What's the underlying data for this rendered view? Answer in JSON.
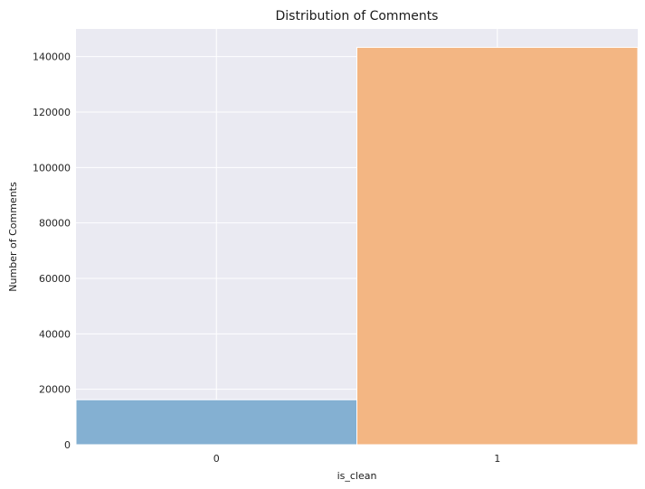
{
  "chart_data": {
    "type": "bar",
    "title": "Distribution of Comments",
    "xlabel": "is_clean",
    "ylabel": "Number of Comments",
    "categories": [
      "0",
      "1"
    ],
    "values": [
      16225,
      143346
    ],
    "colors": [
      "#7fadd0",
      "#f3b37e"
    ],
    "ylim": [
      0,
      150000
    ],
    "yticks": [
      0,
      20000,
      40000,
      60000,
      80000,
      100000,
      120000,
      140000
    ],
    "xlim": [
      -0.5,
      1.5
    ],
    "grid": true,
    "background": "#eaeaf2",
    "legend": "none"
  }
}
